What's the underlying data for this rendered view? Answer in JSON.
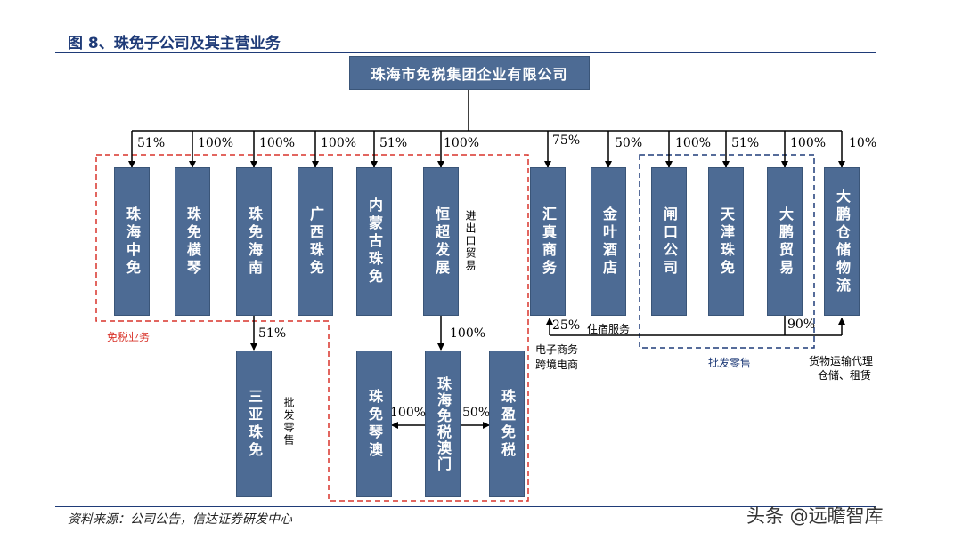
{
  "figure_title": "图 8、珠免子公司及其主营业务",
  "source": "资料来源：公司公告，信达证券研发中心",
  "watermark": "头条 @远瞻智库",
  "root": "珠海市免税集团企业有限公司",
  "subsidiaries": [
    {
      "name": "珠海中免",
      "pct": "51%"
    },
    {
      "name": "珠免横琴",
      "pct": "100%"
    },
    {
      "name": "珠免海南",
      "pct": "100%"
    },
    {
      "name": "广西珠免",
      "pct": "100%"
    },
    {
      "name": "内蒙古珠免",
      "pct": "51%"
    },
    {
      "name": "恒超发展",
      "pct": "100%"
    },
    {
      "name": "汇真商务",
      "pct": "75%"
    },
    {
      "name": "金叶酒店",
      "pct": "50%"
    },
    {
      "name": "闸口公司",
      "pct": "100%"
    },
    {
      "name": "天津珠免",
      "pct": "51%"
    },
    {
      "name": "大鹏贸易",
      "pct": "100%"
    },
    {
      "name": "大鹏仓储物流",
      "pct": "10%"
    }
  ],
  "second_level": {
    "sanya": {
      "name": "三亚珠免",
      "pct": "51%",
      "note": "批发零售"
    },
    "macau": {
      "name": "珠海免税澳门",
      "pct": "100%"
    },
    "qinao": {
      "name": "珠免琴澳",
      "pct": "100%"
    },
    "yingmian": {
      "name": "珠盈免税",
      "pct": "50%"
    }
  },
  "notes": {
    "hengchao": "进出口贸易",
    "huizhen_pct": "25%",
    "huizhen_note1": "电子商务",
    "huizhen_note2": "跨境电商",
    "jinye": "住宿服务",
    "dapeng_pct": "90%",
    "logistics1": "货物运输代理",
    "logistics2": "仓储、租赁"
  },
  "groups": {
    "duty_free": "免税业务",
    "wholesale": "批发零售"
  },
  "colors": {
    "box_fill": "#4d6b94",
    "title": "#1f3b78",
    "red_dash": "#d9342b",
    "blue_dash": "#1f3b78"
  }
}
